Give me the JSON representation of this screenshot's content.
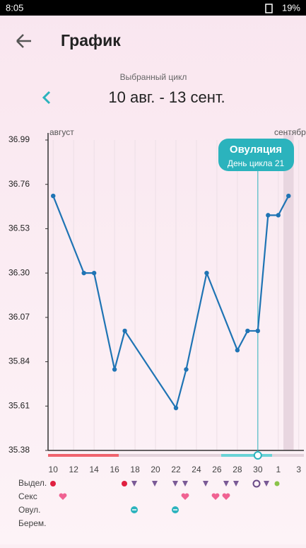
{
  "status_bar": {
    "time": "8:05",
    "battery": "19%"
  },
  "header": {
    "title": "График"
  },
  "cycle": {
    "caption": "Выбранный цикл",
    "range": "10 авг. - 13 сент."
  },
  "chart_data": {
    "type": "line",
    "months": [
      "август",
      "сентябр"
    ],
    "x": [
      1,
      4,
      5,
      7,
      8,
      13,
      14,
      16,
      19,
      20,
      21,
      22,
      23,
      24
    ],
    "values": [
      36.7,
      36.3,
      36.3,
      35.8,
      36.0,
      35.6,
      35.8,
      36.3,
      35.9,
      36.0,
      36.0,
      36.6,
      36.6,
      36.7
    ],
    "color": "#1f74b4",
    "xlim": [
      0.5,
      25.5
    ],
    "xticks": [
      {
        "value": 1,
        "label": "10"
      },
      {
        "value": 3,
        "label": "12"
      },
      {
        "value": 5,
        "label": "14"
      },
      {
        "value": 7,
        "label": "16"
      },
      {
        "value": 9,
        "label": "18"
      },
      {
        "value": 11,
        "label": "20"
      },
      {
        "value": 13,
        "label": "22"
      },
      {
        "value": 15,
        "label": "24"
      },
      {
        "value": 17,
        "label": "26"
      },
      {
        "value": 19,
        "label": "28"
      },
      {
        "value": 21,
        "label": "30"
      },
      {
        "value": 23,
        "label": "1"
      },
      {
        "value": 25,
        "label": "3"
      }
    ],
    "ylim": [
      35.38,
      36.99
    ],
    "yticks": [
      35.38,
      35.61,
      35.84,
      36.07,
      {
        "value": 36.3,
        "label": "36.30"
      },
      36.53,
      36.76,
      36.99
    ],
    "grid": true,
    "highlight_x": 24,
    "annotation": {
      "title": "Овуляция",
      "subtitle": "День цикла 21",
      "x": 21
    }
  },
  "symptoms": {
    "rows": [
      "Выдел.",
      "Секс",
      "Овул.",
      "Берем."
    ]
  }
}
